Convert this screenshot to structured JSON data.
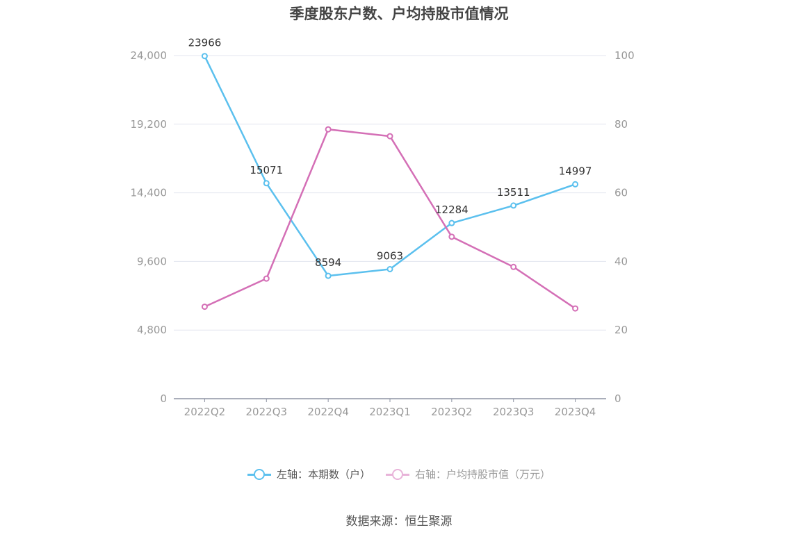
{
  "chart_data": {
    "type": "line",
    "title": "季度股东户数、户均持股市值情况",
    "categories": [
      "2022Q2",
      "2022Q3",
      "2022Q4",
      "2023Q1",
      "2023Q2",
      "2023Q3",
      "2023Q4"
    ],
    "series": [
      {
        "name": "左轴：本期数（户）",
        "axis": "left",
        "color": "#5bc0ee",
        "values": [
          23966,
          15071,
          8594,
          9063,
          12284,
          13511,
          14997
        ],
        "data_labels": [
          "23966",
          "15071",
          "8594",
          "9063",
          "12284",
          "13511",
          "14997"
        ]
      },
      {
        "name": "右轴：户均持股市值（万元）",
        "axis": "right",
        "color": "#d46fb6",
        "values": [
          26.8,
          35.0,
          78.5,
          76.5,
          47.2,
          38.4,
          26.3
        ]
      }
    ],
    "y_left": {
      "min": 0,
      "max": 24000,
      "ticks": [
        0,
        4800,
        9600,
        14400,
        19200,
        24000
      ],
      "tick_labels": [
        "0",
        "4,800",
        "9,600",
        "14,400",
        "19,200",
        "24,000"
      ]
    },
    "y_right": {
      "min": 0,
      "max": 100,
      "ticks": [
        0,
        20,
        40,
        60,
        80,
        100
      ],
      "tick_labels": [
        "0",
        "20",
        "40",
        "60",
        "80",
        "100"
      ]
    },
    "grid": true,
    "legend_position": "bottom"
  },
  "source": "数据来源：恒生聚源"
}
